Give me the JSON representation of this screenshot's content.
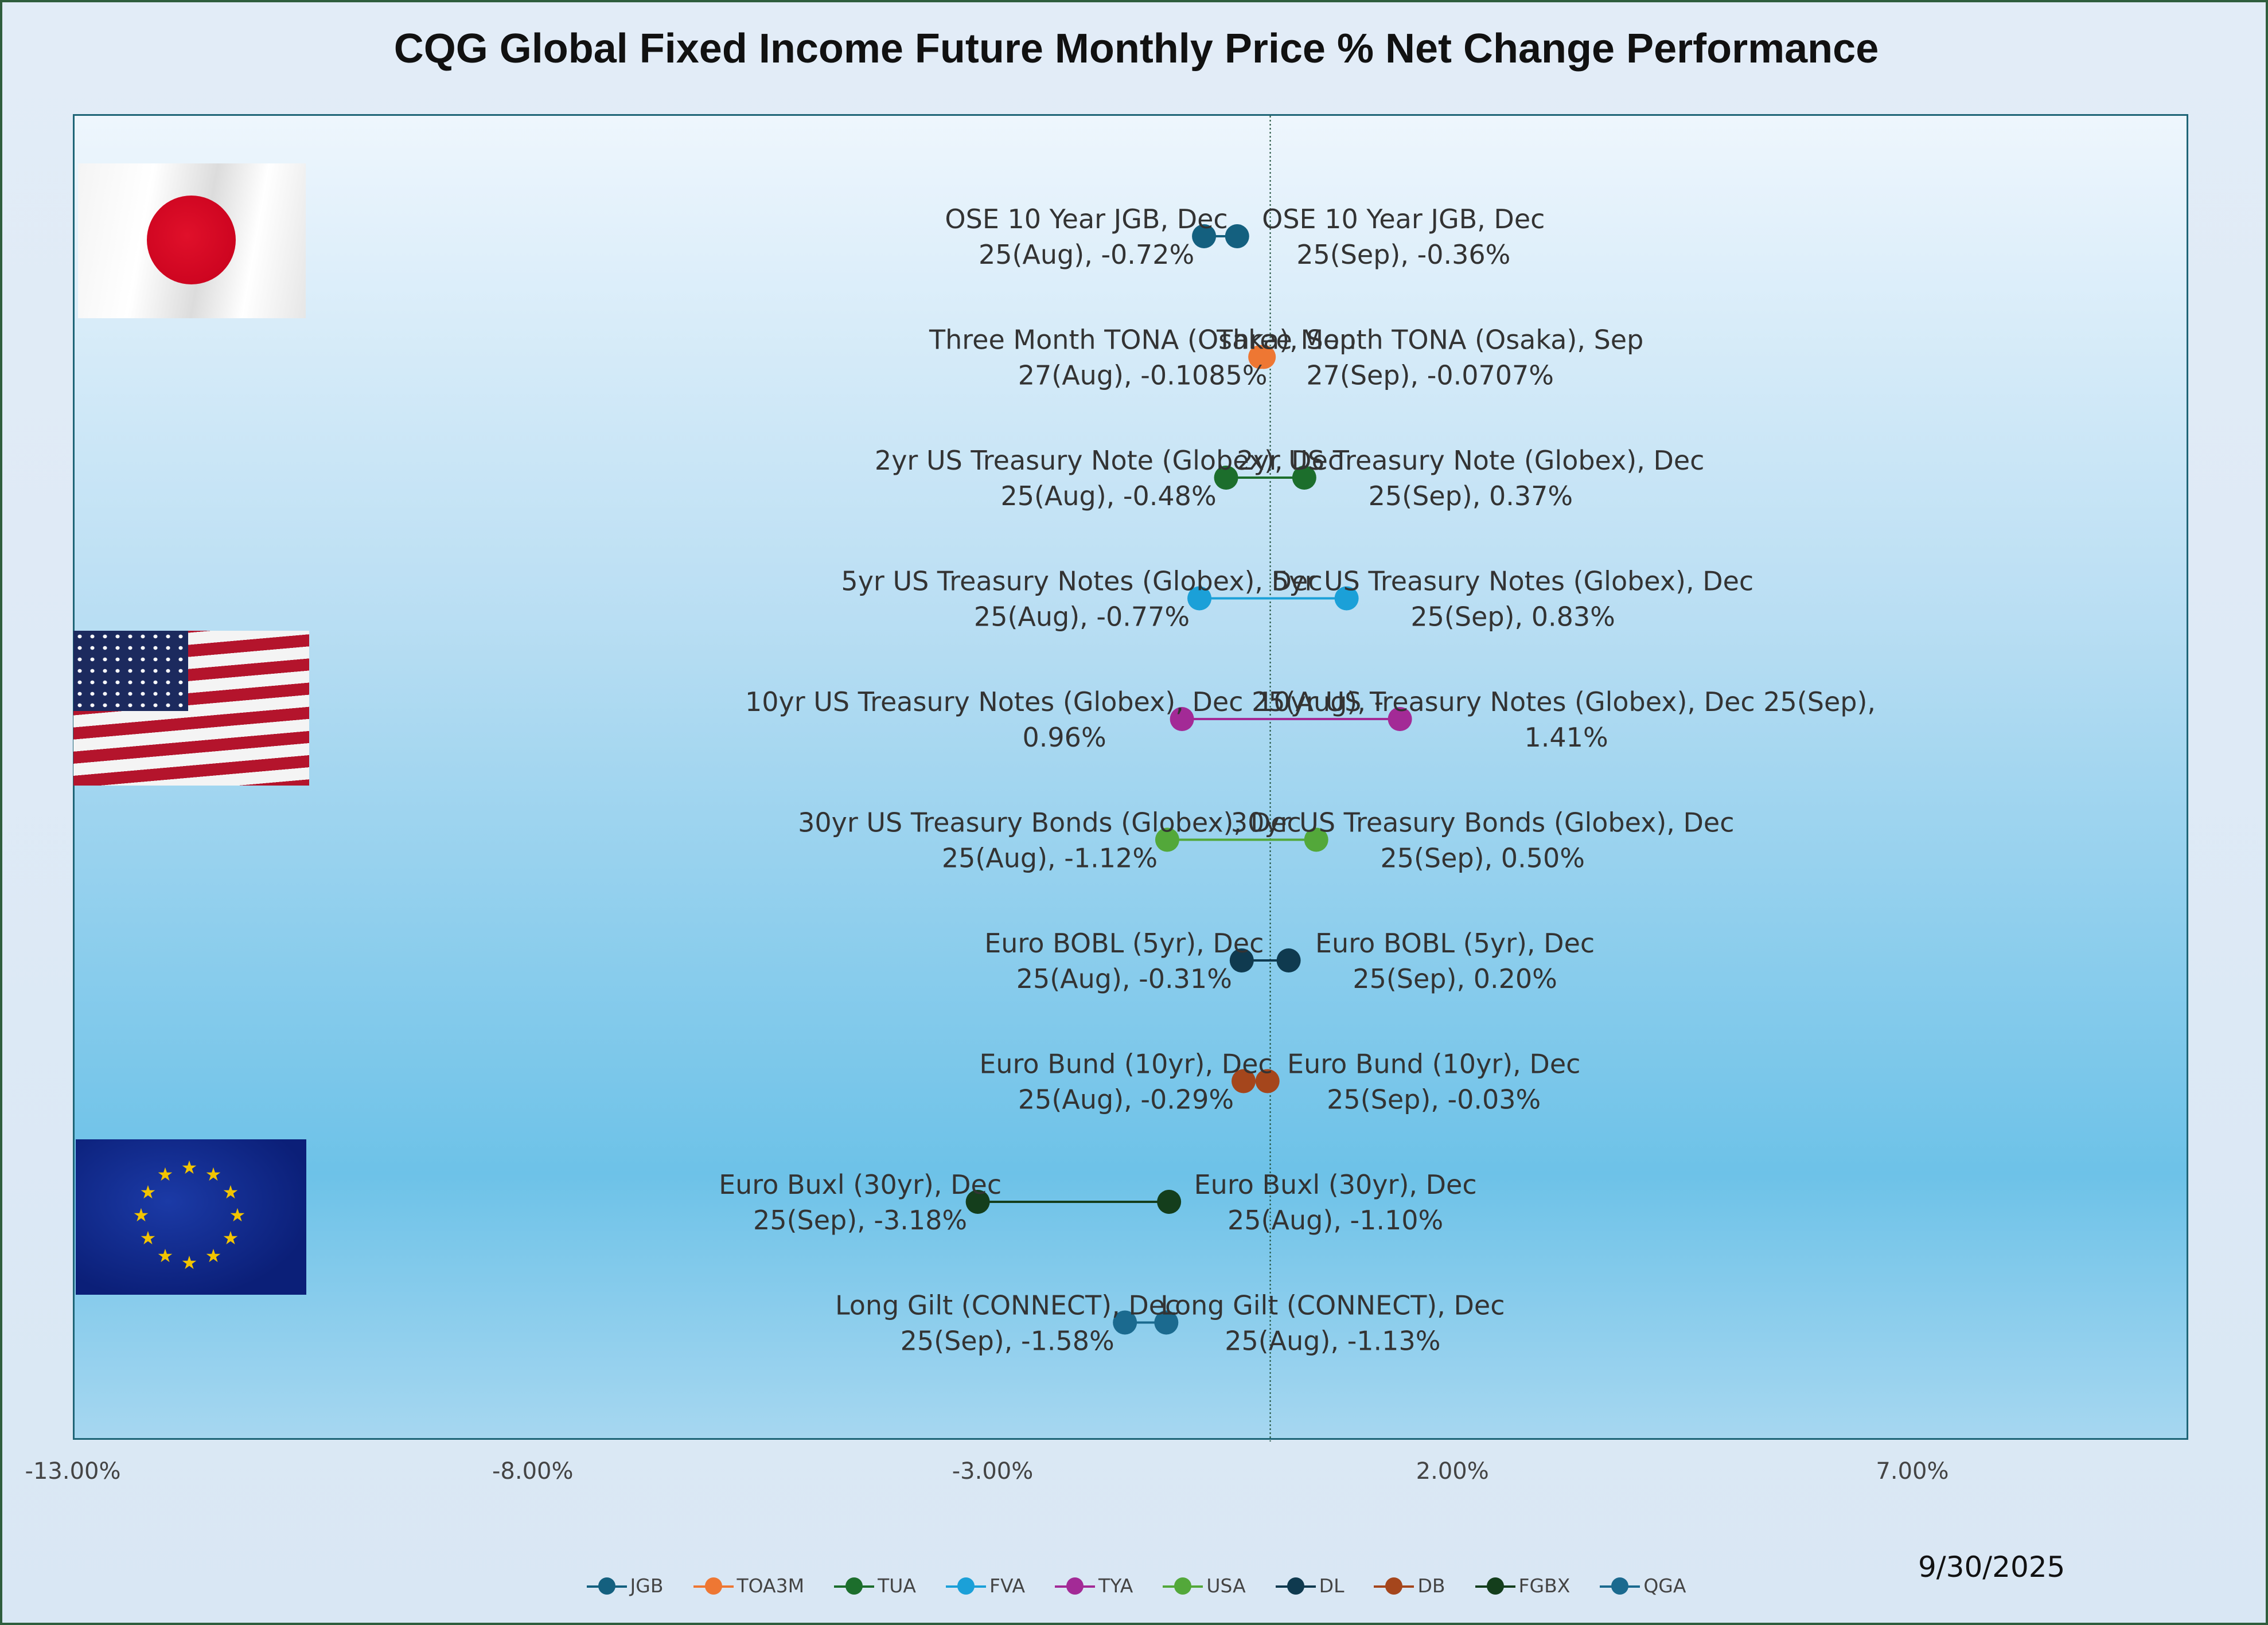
{
  "title": "CQG Global Fixed Income Future Monthly Price % Net Change Performance",
  "date": "9/30/2025",
  "chart_data": {
    "type": "dumbbell",
    "x_axis": {
      "min": -13,
      "max": 10,
      "ticks": [
        -13,
        -8,
        -3,
        2,
        7
      ],
      "tick_labels": [
        "-13.00%",
        "-8.00%",
        "-3.00%",
        "2.00%",
        "7.00%"
      ]
    },
    "reference_line_x": 0,
    "grid": false,
    "legend_position": "bottom",
    "rows": [
      {
        "symbol": "JGB",
        "color": "#14607f",
        "left_value": -0.72,
        "right_value": -0.36,
        "left_label": [
          "OSE 10 Year JGB, Dec",
          "25(Aug), -0.72%"
        ],
        "right_label": [
          "OSE 10 Year JGB, Dec",
          "25(Sep), -0.36%"
        ]
      },
      {
        "symbol": "TOA3M",
        "color": "#ee7733",
        "left_value": -0.1085,
        "right_value": -0.0707,
        "left_label": [
          "Three Month TONA (Osaka), Sep",
          "27(Aug), -0.1085%"
        ],
        "right_label": [
          "Three Month TONA (Osaka), Sep",
          "27(Sep), -0.0707%"
        ]
      },
      {
        "symbol": "TUA",
        "color": "#1c6e2c",
        "left_value": -0.48,
        "right_value": 0.37,
        "left_label": [
          "2yr US Treasury Note (Globex), Dec",
          "25(Aug), -0.48%"
        ],
        "right_label": [
          "2yr US Treasury Note (Globex), Dec",
          "25(Sep), 0.37%"
        ]
      },
      {
        "symbol": "FVA",
        "color": "#1ba0d8",
        "left_value": -0.77,
        "right_value": 0.83,
        "left_label": [
          "5yr US Treasury Notes (Globex), Dec",
          "25(Aug), -0.77%"
        ],
        "right_label": [
          "5yr US Treasury Notes (Globex), Dec",
          "25(Sep), 0.83%"
        ]
      },
      {
        "symbol": "TYA",
        "color": "#a32a96",
        "left_value": -0.96,
        "right_value": 1.41,
        "left_label": [
          "10yr US Treasury Notes (Globex), Dec 25(Aug), -",
          "0.96%"
        ],
        "right_label": [
          "10yr US Treasury Notes (Globex), Dec 25(Sep),",
          "1.41%"
        ]
      },
      {
        "symbol": "USA",
        "color": "#53a83a",
        "left_value": -1.12,
        "right_value": 0.5,
        "left_label": [
          "30yr US Treasury Bonds (Globex), Dec",
          "25(Aug), -1.12%"
        ],
        "right_label": [
          "30yr US Treasury Bonds (Globex), Dec",
          "25(Sep), 0.50%"
        ]
      },
      {
        "symbol": "DL",
        "color": "#0f3a4f",
        "left_value": -0.31,
        "right_value": 0.2,
        "left_label": [
          "Euro BOBL (5yr), Dec",
          "25(Aug), -0.31%"
        ],
        "right_label": [
          "Euro BOBL (5yr), Dec",
          "25(Sep), 0.20%"
        ]
      },
      {
        "symbol": "DB",
        "color": "#a5461c",
        "left_value": -0.29,
        "right_value": -0.03,
        "left_label": [
          "Euro Bund (10yr), Dec",
          "25(Aug), -0.29%"
        ],
        "right_label": [
          "Euro Bund (10yr), Dec",
          "25(Sep), -0.03%"
        ]
      },
      {
        "symbol": "FGBX",
        "color": "#143e1c",
        "left_value": -3.18,
        "right_value": -1.1,
        "left_label": [
          "Euro Buxl (30yr), Dec",
          "25(Sep), -3.18%"
        ],
        "right_label": [
          "Euro Buxl (30yr), Dec",
          "25(Aug), -1.10%"
        ]
      },
      {
        "symbol": "QGA",
        "color": "#1b6a8f",
        "left_value": -1.58,
        "right_value": -1.13,
        "left_label": [
          "Long Gilt (CONNECT), Dec",
          "25(Sep), -1.58%"
        ],
        "right_label": [
          "Long Gilt (CONNECT), Dec",
          "25(Aug), -1.13%"
        ]
      }
    ],
    "legend": [
      "JGB",
      "TOA3M",
      "TUA",
      "FVA",
      "TYA",
      "USA",
      "DL",
      "DB",
      "FGBX",
      "QGA"
    ]
  },
  "flags": [
    {
      "name": "japan-flag"
    },
    {
      "name": "usa-flag"
    },
    {
      "name": "eu-flag"
    }
  ]
}
